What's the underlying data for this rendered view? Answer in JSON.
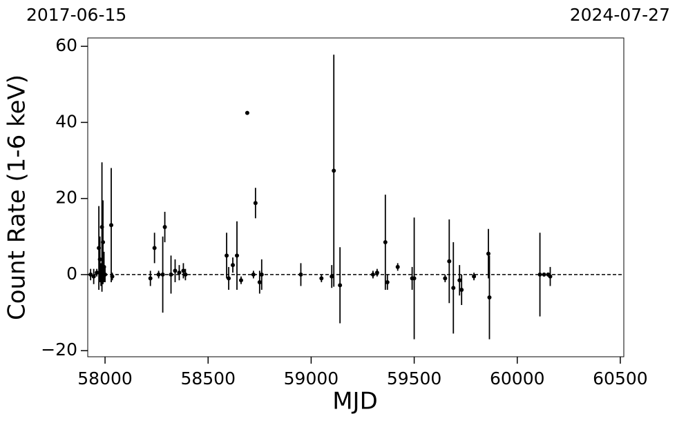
{
  "chart_data": {
    "type": "errorbar",
    "top_left_label": "2017-06-15",
    "top_right_label": "2024-07-27",
    "x_label": "MJD",
    "y_label": "Count Rate (1-6 keV)",
    "xlim": [
      57916,
      60517
    ],
    "ylim": [
      -21.6,
      62.2
    ],
    "xticks": [
      58000,
      58500,
      59000,
      59500,
      60000,
      60500
    ],
    "yticks": [
      {
        "value": -20,
        "label": "−20"
      },
      0,
      20,
      40,
      60
    ],
    "hline": 0,
    "color": "#000000",
    "x": [
      57930,
      57945,
      57960,
      57970,
      57975,
      57980,
      57985,
      57990,
      57995,
      58000,
      58030,
      58035,
      58220,
      58240,
      58260,
      58280,
      58290,
      58320,
      58340,
      58360,
      58380,
      58390,
      58590,
      58600,
      58620,
      58640,
      58660,
      58690,
      58720,
      58730,
      58750,
      58760,
      58950,
      59050,
      59100,
      59110,
      59140,
      59300,
      59320,
      59360,
      59370,
      59420,
      59490,
      59500,
      59650,
      59670,
      59690,
      59720,
      59730,
      59790,
      59860,
      59865,
      60110,
      60130,
      60150,
      60160
    ],
    "values": [
      0,
      -0.5,
      0.5,
      7,
      4,
      0,
      12.5,
      8.5,
      2,
      0,
      13,
      -0.5,
      -1,
      7,
      0,
      0,
      12.5,
      0,
      1,
      0.5,
      1,
      0,
      5,
      -1,
      2.5,
      5,
      -1.5,
      42.5,
      0,
      18.8,
      -2,
      0,
      0,
      -1,
      -0.5,
      27.3,
      -2.8,
      0,
      0.5,
      8.5,
      -2,
      2,
      -1,
      -1,
      -1,
      3.5,
      -3.5,
      -1.5,
      -4,
      -0.5,
      5.5,
      -6,
      0,
      0,
      0,
      -0.5
    ],
    "errors": [
      1.5,
      2,
      1,
      11,
      6,
      3,
      17,
      11,
      4,
      2,
      15,
      1,
      2,
      4,
      1,
      10,
      4,
      5,
      3,
      2,
      2,
      1.5,
      6,
      3,
      2,
      9,
      1,
      0,
      1,
      4,
      3,
      4,
      3,
      1,
      3,
      30.5,
      10,
      1,
      1,
      12.5,
      2,
      1,
      3,
      16,
      1,
      11,
      12,
      4,
      4,
      1,
      6.5,
      11,
      11,
      0.5,
      0.5,
      2.5
    ]
  }
}
